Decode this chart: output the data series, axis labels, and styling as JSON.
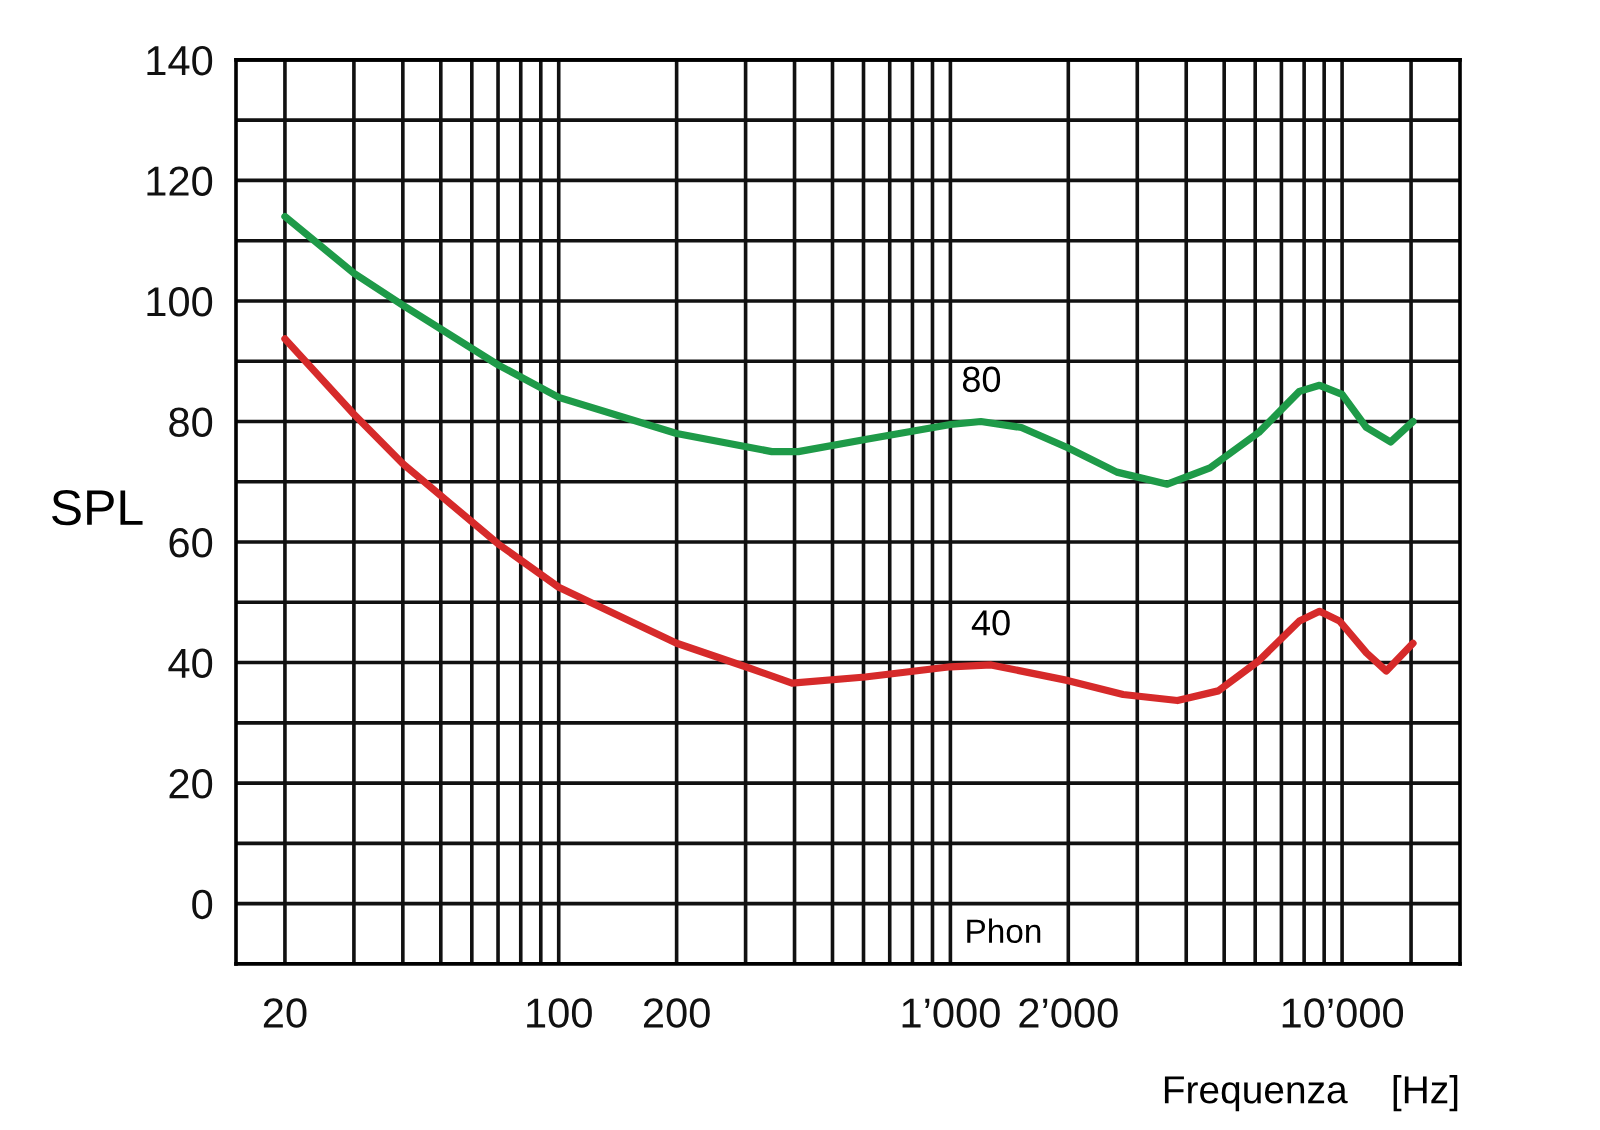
{
  "chart_data": {
    "type": "line",
    "xlabel": "Frequenza    [Hz]",
    "ylabel": "SPL",
    "log": "x",
    "grid": true,
    "marker": "none",
    "line_style": "solid",
    "xlim": [
      15,
      20000
    ],
    "ylim": [
      -10,
      140
    ],
    "xticks": [
      20,
      {
        "value": 30,
        "label": null
      },
      {
        "value": 40,
        "label": null
      },
      {
        "value": 50,
        "label": null
      },
      {
        "value": 60,
        "label": null
      },
      {
        "value": 70,
        "label": null
      },
      {
        "value": 80,
        "label": null
      },
      {
        "value": 90,
        "label": null
      },
      100,
      200,
      {
        "value": 300,
        "label": null
      },
      {
        "value": 400,
        "label": null
      },
      {
        "value": 500,
        "label": null
      },
      {
        "value": 600,
        "label": null
      },
      {
        "value": 700,
        "label": null
      },
      {
        "value": 800,
        "label": null
      },
      {
        "value": 900,
        "label": null
      },
      {
        "value": 1000,
        "label": "1’000"
      },
      {
        "value": 2000,
        "label": "2’000"
      },
      {
        "value": 3000,
        "label": null
      },
      {
        "value": 4000,
        "label": null
      },
      {
        "value": 5000,
        "label": null
      },
      {
        "value": 6000,
        "label": null
      },
      {
        "value": 7000,
        "label": null
      },
      {
        "value": 8000,
        "label": null
      },
      {
        "value": 9000,
        "label": null
      },
      {
        "value": 10000,
        "label": "10’000"
      },
      {
        "value": 15000,
        "label": null
      }
    ],
    "yticks": [
      0,
      {
        "value": 10,
        "label": null
      },
      20,
      {
        "value": 30,
        "label": null
      },
      40,
      {
        "value": 50,
        "label": null
      },
      60,
      {
        "value": 70,
        "label": null
      },
      80,
      {
        "value": 90,
        "label": null
      },
      100,
      {
        "value": 110,
        "label": null
      },
      120,
      {
        "value": 130,
        "label": null
      },
      140
    ],
    "series": [
      {
        "color": "#1e9a48",
        "x": [
          20,
          30,
          40,
          70,
          100,
          200,
          350,
          409,
          606,
          1000,
          1196,
          1518,
          2000,
          2660,
          3580,
          4600,
          6130,
          7780,
          8760,
          10000,
          11540,
          13300,
          15170
        ],
        "values": [
          114,
          104.6,
          99.3,
          89.4,
          84,
          78,
          75,
          75,
          77,
          79.5,
          80,
          79,
          75.6,
          71.6,
          69.6,
          72.3,
          78.2,
          85,
          86,
          84.5,
          79,
          76.6,
          80
        ]
      },
      {
        "color": "#d62a2a",
        "x": [
          20,
          30,
          40,
          70,
          100,
          200,
          300,
          394,
          606,
          1000,
          1270,
          2000,
          2760,
          3800,
          4830,
          6130,
          7780,
          8760,
          9850,
          11540,
          12970,
          15170
        ],
        "values": [
          93.7,
          81.2,
          73,
          59.7,
          52.5,
          43.2,
          39.3,
          36.6,
          37.6,
          39.3,
          39.6,
          37,
          34.7,
          33.7,
          35.3,
          40.3,
          46.9,
          48.5,
          46.9,
          41.6,
          38.6,
          43.2
        ]
      }
    ],
    "annotations": [
      {
        "text": "80",
        "x": 1200,
        "y": 80
      },
      {
        "text": "40",
        "x": 1270,
        "y": 39.6
      },
      "Phon"
    ]
  }
}
